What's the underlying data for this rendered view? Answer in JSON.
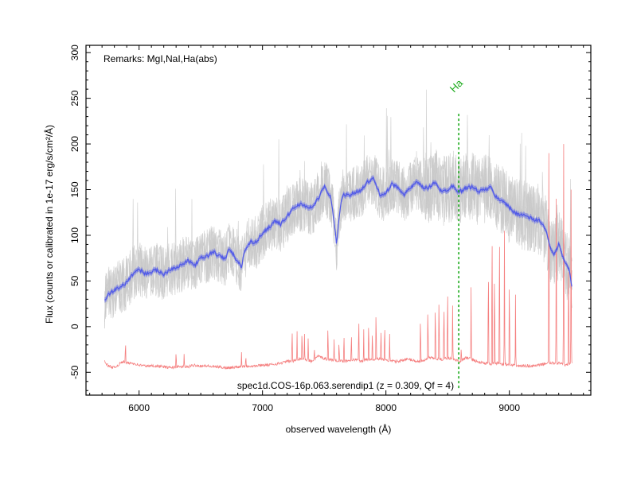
{
  "chart_data": {
    "type": "line",
    "remarks": "Remarks: MgI,NaI,Ha(abs)",
    "object_label": "spec1d.COS-16p.063.serendip1 (z = 0.309, Qf = 4)",
    "xlabel": "observed wavelength (Å)",
    "ylabel": "Flux (counts or calibrated in 1e-17 erg/s/cm²/Å)",
    "xlim": [
      5570,
      9660
    ],
    "ylim": [
      -75,
      308
    ],
    "x_ticks": [
      6000,
      7000,
      8000,
      9000
    ],
    "y_ticks": [
      -50,
      0,
      50,
      100,
      150,
      200,
      250,
      300
    ],
    "line_marker": {
      "label": "Ha",
      "x": 8590,
      "y_top": 233,
      "color": "#1aaa1a"
    },
    "series": [
      {
        "name": "",
        "role": "smoothed flux",
        "color": "#4f58e8",
        "x": [
          5720,
          5750,
          5800,
          5850,
          5900,
          5950,
          6000,
          6050,
          6100,
          6150,
          6200,
          6250,
          6300,
          6350,
          6400,
          6450,
          6500,
          6550,
          6600,
          6650,
          6700,
          6720,
          6750,
          6800,
          6830,
          6850,
          6900,
          6950,
          7000,
          7050,
          7100,
          7150,
          7200,
          7250,
          7300,
          7350,
          7400,
          7450,
          7500,
          7550,
          7580,
          7600,
          7620,
          7650,
          7700,
          7750,
          7800,
          7850,
          7900,
          7950,
          8000,
          8050,
          8100,
          8150,
          8200,
          8250,
          8300,
          8350,
          8400,
          8450,
          8500,
          8550,
          8580,
          8600,
          8650,
          8700,
          8750,
          8800,
          8850,
          8900,
          8950,
          9000,
          9050,
          9100,
          9150,
          9200,
          9250,
          9300,
          9330,
          9360,
          9380,
          9400,
          9420,
          9450,
          9480,
          9500,
          9510
        ],
        "y": [
          28,
          35,
          40,
          44,
          48,
          58,
          63,
          58,
          60,
          62,
          57,
          63,
          65,
          68,
          72,
          67,
          75,
          77,
          82,
          77,
          74,
          84,
          82,
          70,
          66,
          80,
          93,
          92,
          103,
          108,
          116,
          112,
          121,
          130,
          134,
          132,
          130,
          140,
          153,
          143,
          115,
          90,
          120,
          145,
          143,
          147,
          150,
          158,
          162,
          145,
          146,
          156,
          152,
          145,
          152,
          158,
          152,
          152,
          159,
          147,
          150,
          155,
          148,
          148,
          152,
          153,
          148,
          150,
          152,
          140,
          138,
          130,
          124,
          123,
          120,
          117,
          116,
          104,
          86,
          79,
          84,
          90,
          82,
          70,
          64,
          50,
          38
        ]
      },
      {
        "name": "",
        "role": "sky / error spectrum",
        "color": "#f58080",
        "x": [
          5720,
          5750,
          5800,
          5850,
          5880,
          5900,
          5950,
          6000,
          6050,
          6100,
          6150,
          6200,
          6250,
          6300,
          6350,
          6400,
          6450,
          6500,
          6550,
          6600,
          6650,
          6700,
          6750,
          6800,
          6850,
          6900,
          6950,
          7000,
          7050,
          7100,
          7150,
          7200,
          7250,
          7300,
          7350,
          7400,
          7450,
          7500,
          7550,
          7600,
          7650,
          7700,
          7750,
          7800,
          7850,
          7900,
          7950,
          8000,
          8050,
          8100,
          8150,
          8200,
          8250,
          8300,
          8350,
          8400,
          8450,
          8500,
          8550,
          8600,
          8650,
          8700,
          8750,
          8800,
          8850,
          8900,
          8950,
          9000,
          9050,
          9100,
          9150,
          9200,
          9250,
          9300,
          9350,
          9400,
          9450,
          9500,
          9510
        ],
        "y": [
          -38,
          -43,
          -45,
          -40,
          -38,
          -40,
          -40,
          -42,
          -43,
          -43,
          -43,
          -44,
          -45,
          -44,
          -44,
          -44,
          -42,
          -43,
          -43,
          -44,
          -44,
          -45,
          -45,
          -44,
          -43,
          -43,
          -43,
          -42,
          -42,
          -41,
          -40,
          -38,
          -38,
          -35,
          -36,
          -38,
          -32,
          -35,
          -36,
          -37,
          -38,
          -37,
          -36,
          -38,
          -36,
          -36,
          -35,
          -37,
          -38,
          -38,
          -36,
          -36,
          -38,
          -38,
          -34,
          -35,
          -36,
          -34,
          -36,
          -38,
          -34,
          -36,
          -39,
          -40,
          -41,
          -40,
          -41,
          -42,
          -43,
          -43,
          -43,
          -43,
          -42,
          -40,
          -40,
          -40,
          -42,
          -40,
          -40
        ],
        "emission_lines": [
          [
            5890,
            -13
          ],
          [
            6300,
            -25
          ],
          [
            6365,
            -30
          ],
          [
            6830,
            -28
          ],
          [
            6865,
            -31
          ],
          [
            7240,
            5
          ],
          [
            7280,
            -5
          ],
          [
            7320,
            0
          ],
          [
            7340,
            -8
          ],
          [
            7370,
            -13
          ],
          [
            7420,
            -22
          ],
          [
            7530,
            8
          ],
          [
            7580,
            -14
          ],
          [
            7620,
            -13
          ],
          [
            7660,
            -2
          ],
          [
            7720,
            -2
          ],
          [
            7780,
            20
          ],
          [
            7820,
            -3
          ],
          [
            7860,
            12
          ],
          [
            7890,
            1
          ],
          [
            7920,
            28
          ],
          [
            7960,
            5
          ],
          [
            7990,
            10
          ],
          [
            8030,
            -8
          ],
          [
            8280,
            20
          ],
          [
            8340,
            32
          ],
          [
            8400,
            35
          ],
          [
            8430,
            48
          ],
          [
            8470,
            37
          ],
          [
            8500,
            60
          ],
          [
            8540,
            23
          ],
          [
            8610,
            -20
          ],
          [
            8690,
            43
          ],
          [
            8780,
            -40
          ],
          [
            8830,
            85
          ],
          [
            8860,
            140
          ],
          [
            8880,
            82
          ],
          [
            8920,
            138
          ],
          [
            8960,
            105
          ],
          [
            9000,
            73
          ],
          [
            9050,
            35
          ],
          [
            9320,
            190
          ],
          [
            9380,
            140
          ],
          [
            9440,
            200
          ],
          [
            9480,
            100
          ],
          [
            9500,
            150
          ]
        ]
      }
    ],
    "raw_flux_band": {
      "color": "#c8c8c8",
      "y_lower_offset": -28,
      "y_upper_offset": 32
    }
  }
}
